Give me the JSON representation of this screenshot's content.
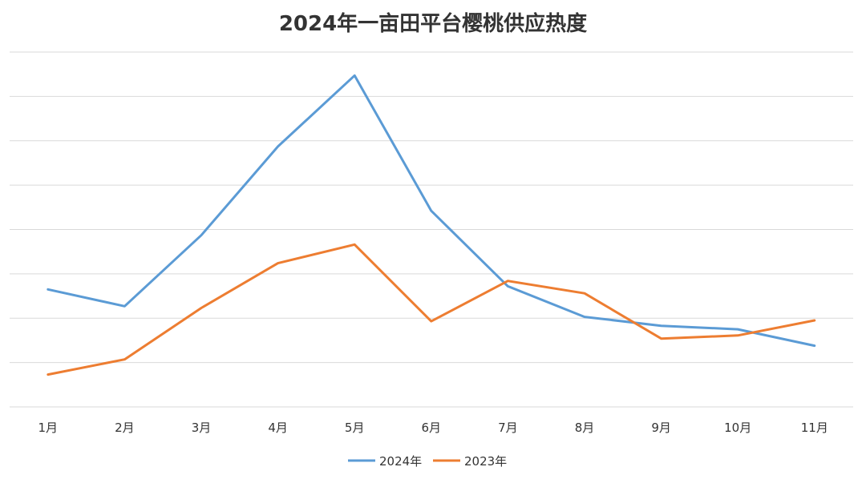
{
  "chart_data": {
    "type": "line",
    "title": "2024年一亩田平台樱桃供应热度",
    "categories": [
      "1月",
      "2月",
      "3月",
      "4月",
      "5月",
      "6月",
      "7月",
      "8月",
      "9月",
      "10月",
      "11月"
    ],
    "ylim": [
      0,
      8
    ],
    "grid": true,
    "legend_position": "bottom-center",
    "series": [
      {
        "name": "2024年",
        "color": "#5b9bd5",
        "values": [
          2.65,
          2.27,
          3.87,
          5.87,
          7.47,
          4.42,
          2.72,
          2.03,
          1.83,
          1.75,
          1.38
        ]
      },
      {
        "name": "2023年",
        "color": "#ed7d31",
        "values": [
          0.73,
          1.07,
          2.23,
          3.24,
          3.66,
          1.93,
          2.84,
          2.56,
          1.54,
          1.61,
          1.95
        ]
      }
    ]
  }
}
